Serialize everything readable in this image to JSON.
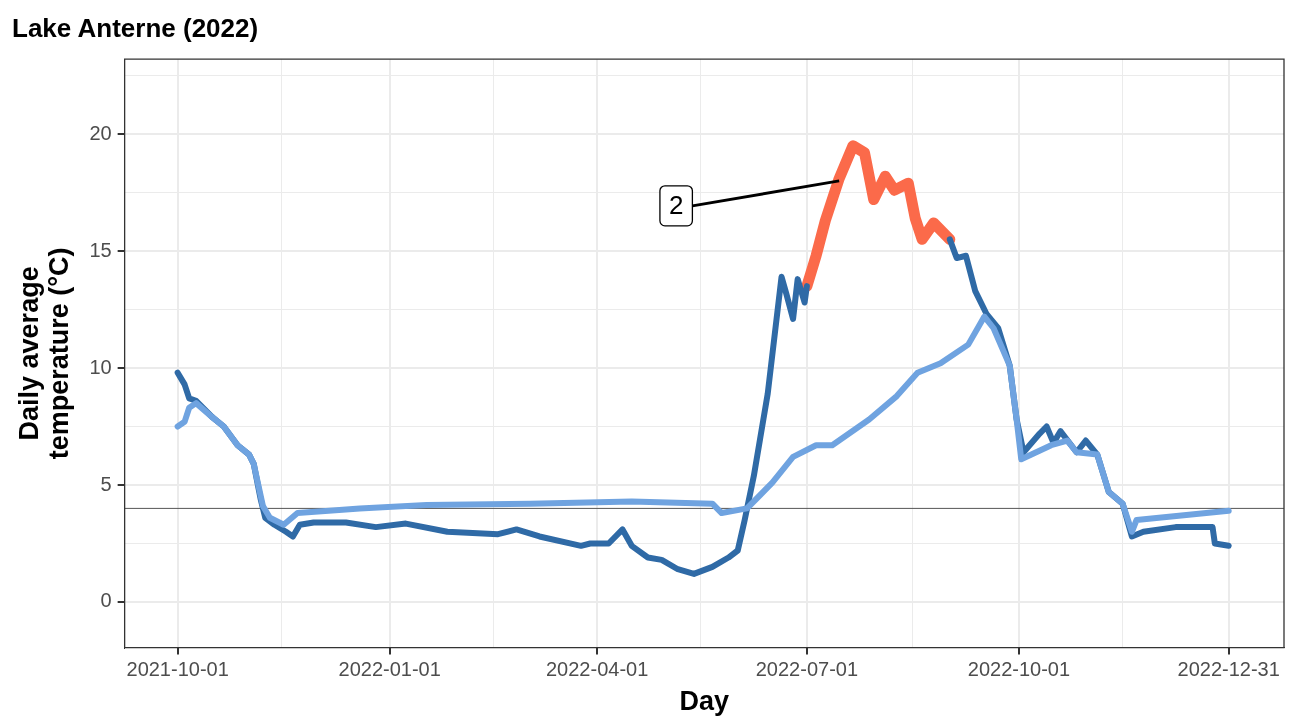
{
  "chart_data": {
    "type": "line",
    "title": "Lake Anterne (2022)",
    "xlabel": "Day",
    "ylabel": "Daily average\ntemperature (°C)",
    "xlim": [
      "2021-09-08",
      "2023-01-24"
    ],
    "xticks": [
      "2021-10-01",
      {
        "value": "2021-11-15",
        "label": null
      },
      "2022-01-01",
      {
        "value": "2022-02-15",
        "label": null
      },
      "2022-04-01",
      {
        "value": "2022-05-16",
        "label": null
      },
      "2022-07-01",
      {
        "value": "2022-08-16",
        "label": null
      },
      "2022-10-01",
      {
        "value": "2022-11-15",
        "label": null
      },
      "2022-12-31"
    ],
    "ylim": [
      -1.95,
      23.2
    ],
    "yticks": [
      0,
      {
        "value": 2.5,
        "label": null
      },
      5,
      {
        "value": 7.5,
        "label": null
      },
      10,
      {
        "value": 12.5,
        "label": null
      },
      15,
      {
        "value": 17.5,
        "label": null
      },
      20,
      {
        "value": 22.5,
        "label": null
      }
    ],
    "grid": true,
    "legend": false,
    "line_style": "solid",
    "marker": "none",
    "ref_lines": [
      {
        "axis": "y",
        "value": 4,
        "color": "#555555"
      }
    ],
    "annotations": [
      {
        "text": "2",
        "x": "2022-07-15",
        "y": 18
      }
    ],
    "series": [
      {
        "color": "#6fa3e0",
        "x": [
          "2021-10-01",
          "2021-10-04",
          "2021-10-06",
          "2021-10-09",
          "2021-10-16",
          "2021-10-21",
          "2021-10-27",
          "2021-11-01",
          "2021-11-03",
          "2021-11-07",
          "2021-11-10",
          "2021-11-16",
          "2021-11-22",
          "2021-12-19",
          "2022-01-17",
          "2022-03-03",
          "2022-04-16",
          "2022-05-21",
          "2022-05-25",
          "2022-06-05",
          "2022-06-16",
          "2022-06-25",
          "2022-07-05",
          "2022-07-12",
          "2022-07-28",
          "2022-08-09",
          "2022-08-18",
          "2022-08-28",
          "2022-09-09",
          "2022-09-16",
          "2022-09-20",
          "2022-09-27",
          "2022-09-30",
          "2022-10-02",
          "2022-10-15",
          "2022-10-22",
          "2022-10-26",
          "2022-11-04",
          "2022-11-09",
          "2022-11-15",
          "2022-11-19",
          "2022-11-21",
          "2022-12-31"
        ],
        "values": [
          7.5,
          7.7,
          8.3,
          8.5,
          7.9,
          7.5,
          6.7,
          6.3,
          5.9,
          4.1,
          3.6,
          3.3,
          3.8,
          4.0,
          4.15,
          4.2,
          4.3,
          4.2,
          3.8,
          4.0,
          5.1,
          6.2,
          6.7,
          6.7,
          7.8,
          8.8,
          9.8,
          10.2,
          11.0,
          12.2,
          11.7,
          10.1,
          7.8,
          6.1,
          6.7,
          6.9,
          6.4,
          6.3,
          4.7,
          4.2,
          3.0,
          3.5,
          3.9
        ]
      },
      {
        "color": "#2f6aa6",
        "x": [
          "2021-10-01",
          "2021-10-04",
          "2021-10-06",
          "2021-10-09",
          "2021-10-16",
          "2021-10-21",
          "2021-10-27",
          "2021-11-01",
          "2021-11-03",
          "2021-11-06",
          "2021-11-08",
          "2021-11-12",
          "2021-11-17",
          "2021-11-20",
          "2021-11-23",
          "2021-11-29",
          "2021-12-13",
          "2021-12-26",
          "2022-01-08",
          "2022-01-26",
          "2022-02-17",
          "2022-02-25",
          "2022-03-07",
          "2022-03-25",
          "2022-03-29",
          "2022-04-06",
          "2022-04-12",
          "2022-04-16",
          "2022-04-23",
          "2022-04-29",
          "2022-05-06",
          "2022-05-13",
          "2022-05-21",
          "2022-05-28",
          "2022-06-01",
          "2022-06-04",
          "2022-06-08",
          "2022-06-14",
          "2022-06-20",
          "2022-06-22",
          "2022-06-25",
          "2022-06-27",
          "2022-06-30",
          "2022-07-01",
          "2022-08-01",
          "2022-09-01",
          "2022-09-04",
          "2022-09-08",
          "2022-09-12",
          "2022-09-17",
          "2022-09-22",
          "2022-09-27",
          "2022-09-30",
          "2022-10-03",
          "2022-10-10",
          "2022-10-13",
          "2022-10-16",
          "2022-10-19",
          "2022-10-26",
          "2022-10-30",
          "2022-11-04",
          "2022-11-09",
          "2022-11-15",
          "2022-11-19",
          "2022-11-24",
          "2022-12-08",
          "2022-12-24",
          "2022-12-25",
          "2022-12-31"
        ],
        "values": [
          9.8,
          9.3,
          8.7,
          8.6,
          7.9,
          7.5,
          6.7,
          6.3,
          5.9,
          4.4,
          3.6,
          3.3,
          3.0,
          2.8,
          3.3,
          3.4,
          3.4,
          3.2,
          3.35,
          3.0,
          2.9,
          3.1,
          2.8,
          2.4,
          2.5,
          2.5,
          3.1,
          2.4,
          1.9,
          1.8,
          1.4,
          1.2,
          1.5,
          1.9,
          2.2,
          3.5,
          5.4,
          8.9,
          13.9,
          13.2,
          12.1,
          13.8,
          12.8,
          13.5,
          null,
          15.5,
          14.7,
          14.8,
          13.3,
          12.3,
          11.7,
          10.1,
          7.8,
          6.4,
          7.2,
          7.5,
          6.8,
          7.3,
          6.4,
          6.9,
          6.3,
          4.7,
          4.2,
          2.8,
          3.0,
          3.2,
          3.2,
          2.5,
          2.4
        ]
      },
      {
        "color": "#fb6a4a",
        "x": [
          "2022-07-01",
          "2022-07-05",
          "2022-07-09",
          "2022-07-15",
          "2022-07-21",
          "2022-07-26",
          "2022-07-30",
          "2022-08-04",
          "2022-08-08",
          "2022-08-14",
          "2022-08-17",
          "2022-08-20",
          "2022-08-25",
          "2022-09-01"
        ],
        "values": [
          13.5,
          14.8,
          16.3,
          18.1,
          19.5,
          19.2,
          17.2,
          18.2,
          17.6,
          17.9,
          16.4,
          15.5,
          16.2,
          15.5
        ]
      }
    ]
  }
}
